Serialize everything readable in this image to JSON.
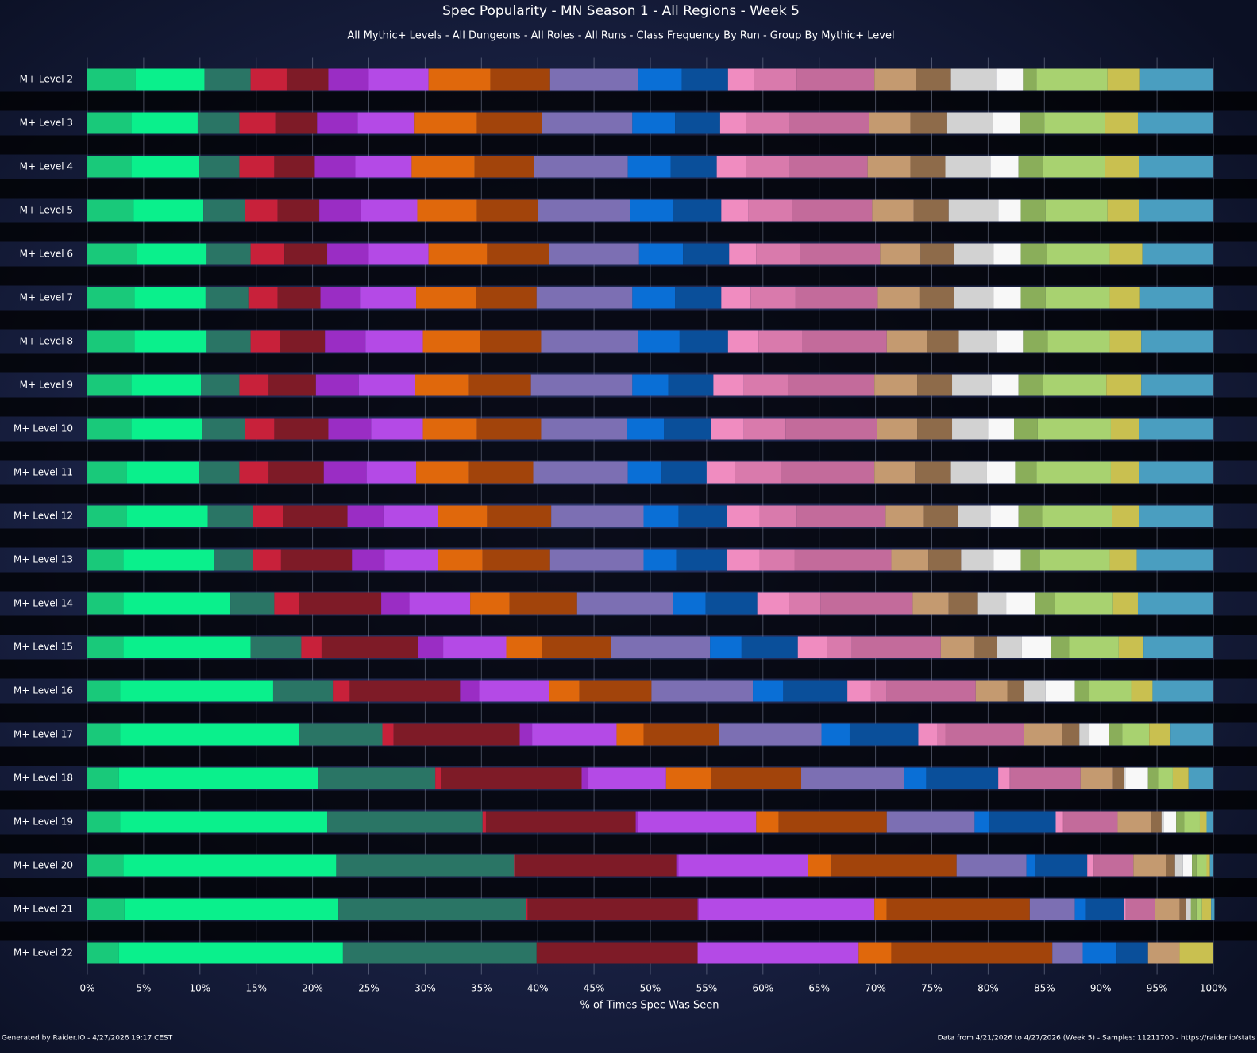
{
  "chart_data": {
    "type": "stacked-bar-horizontal",
    "title": "Spec Popularity - MN Season 1 - All Regions - Week 5",
    "subtitle": "All Mythic+ Levels - All Dungeons - All Roles - All Runs - Class Frequency By Run - Group By Mythic+ Level",
    "x_label": "% of Times Spec Was Seen",
    "footer_left": "Generated by Raider.IO - 4/27/2026 19:17 CEST",
    "footer_right": "Data from 4/21/2026 to 4/27/2026 (Week 5) - Samples: 11211700 - https://raider.io/stats",
    "grid": true,
    "xlim": [
      0,
      100
    ],
    "xticks": [
      {
        "value": 0,
        "label": "0%"
      },
      {
        "value": 5,
        "label": "5%"
      },
      {
        "value": 10,
        "label": "10%"
      },
      {
        "value": 15,
        "label": "15%"
      },
      {
        "value": 20,
        "label": "20%"
      },
      {
        "value": 25,
        "label": "25%"
      },
      {
        "value": 30,
        "label": "30%"
      },
      {
        "value": 35,
        "label": "35%"
      },
      {
        "value": 40,
        "label": "40%"
      },
      {
        "value": 45,
        "label": "45%"
      },
      {
        "value": 50,
        "label": "50%"
      },
      {
        "value": 55,
        "label": "55%"
      },
      {
        "value": 60,
        "label": "60%"
      },
      {
        "value": 65,
        "label": "65%"
      },
      {
        "value": 70,
        "label": "70%"
      },
      {
        "value": 75,
        "label": "75%"
      },
      {
        "value": 80,
        "label": "80%"
      },
      {
        "value": 85,
        "label": "85%"
      },
      {
        "value": 90,
        "label": "90%"
      },
      {
        "value": 95,
        "label": "95%"
      },
      {
        "value": 100,
        "label": "100%"
      }
    ],
    "categories": [
      "M+ Level 2",
      "M+ Level 3",
      "M+ Level 4",
      "M+ Level 5",
      "M+ Level 6",
      "M+ Level 7",
      "M+ Level 8",
      "M+ Level 9",
      "M+ Level 10",
      "M+ Level 11",
      "M+ Level 12",
      "M+ Level 13",
      "M+ Level 14",
      "M+ Level 15",
      "M+ Level 16",
      "M+ Level 17",
      "M+ Level 18",
      "M+ Level 19",
      "M+ Level 20",
      "M+ Level 21",
      "M+ Level 22"
    ],
    "series": [
      {
        "color": "#19c97a",
        "values": [
          4.3,
          3.9,
          3.9,
          4.1,
          4.4,
          4.2,
          4.2,
          3.9,
          3.9,
          3.5,
          3.5,
          3.2,
          3.2,
          3.2,
          2.9,
          2.9,
          2.8,
          2.9,
          3.2,
          3.3,
          2.8
        ]
      },
      {
        "color": "#0af08c",
        "values": [
          6.1,
          5.9,
          6.0,
          6.2,
          6.2,
          6.3,
          6.4,
          6.2,
          6.3,
          6.4,
          7.2,
          8.1,
          9.5,
          11.3,
          13.6,
          15.9,
          17.7,
          18.4,
          18.9,
          19.0,
          19.9
        ]
      },
      {
        "color": "#2a7565",
        "values": [
          4.1,
          3.7,
          3.6,
          3.7,
          3.9,
          3.8,
          3.9,
          3.4,
          3.8,
          3.6,
          4.0,
          3.4,
          3.9,
          4.5,
          5.3,
          7.4,
          10.4,
          13.8,
          15.8,
          16.7,
          17.2
        ]
      },
      {
        "color": "#c8213a",
        "values": [
          3.2,
          3.2,
          3.1,
          2.9,
          3.0,
          2.6,
          2.6,
          2.6,
          2.6,
          2.6,
          2.7,
          2.5,
          2.2,
          1.8,
          1.5,
          1.0,
          0.5,
          0.3,
          0.1,
          0.1,
          0
        ]
      },
      {
        "color": "#7e1b27",
        "values": [
          3.7,
          3.7,
          3.6,
          3.7,
          3.8,
          3.8,
          4.0,
          4.2,
          4.8,
          4.9,
          5.7,
          6.3,
          7.3,
          8.6,
          9.8,
          11.2,
          12.5,
          13.3,
          14.3,
          15.1,
          14.3
        ]
      },
      {
        "color": "#9a2dc4",
        "values": [
          3.6,
          3.6,
          3.6,
          3.7,
          3.7,
          3.5,
          3.6,
          3.8,
          3.8,
          3.8,
          3.2,
          2.9,
          2.5,
          2.2,
          1.7,
          1.1,
          0.6,
          0.2,
          0.2,
          0.1,
          0
        ]
      },
      {
        "color": "#b44ae6",
        "values": [
          5.3,
          5.0,
          5.0,
          5.0,
          5.3,
          5.0,
          5.1,
          5.0,
          4.6,
          4.4,
          4.8,
          4.7,
          5.4,
          5.6,
          6.2,
          7.5,
          6.9,
          10.5,
          11.5,
          15.6,
          14.3
        ]
      },
      {
        "color": "#e0680c",
        "values": [
          5.5,
          5.6,
          5.6,
          5.3,
          5.2,
          5.3,
          5.1,
          4.8,
          4.8,
          4.7,
          4.4,
          4.0,
          3.5,
          3.2,
          2.7,
          2.4,
          4.0,
          2.0,
          2.1,
          1.1,
          2.9
        ]
      },
      {
        "color": "#a2440b",
        "values": [
          5.3,
          5.8,
          5.3,
          5.4,
          5.5,
          5.4,
          5.4,
          5.5,
          5.7,
          5.7,
          5.7,
          6.0,
          6.0,
          6.1,
          6.4,
          6.7,
          8.0,
          9.6,
          11.1,
          12.7,
          14.3
        ]
      },
      {
        "color": "#7c6fb3",
        "values": [
          7.8,
          8.0,
          8.3,
          8.2,
          8.0,
          8.5,
          8.6,
          9.0,
          7.6,
          8.4,
          8.2,
          8.3,
          8.5,
          8.8,
          9.0,
          9.1,
          9.1,
          7.8,
          6.2,
          4.0,
          2.7
        ]
      },
      {
        "color": "#0a6fd6",
        "values": [
          3.9,
          3.8,
          3.8,
          3.8,
          3.9,
          3.8,
          3.7,
          3.2,
          3.3,
          3.0,
          3.1,
          2.9,
          2.9,
          2.8,
          2.7,
          2.5,
          2.0,
          1.3,
          0.8,
          1.0,
          3.0
        ]
      },
      {
        "color": "#0a4f9a",
        "values": [
          4.1,
          4.0,
          4.1,
          4.3,
          4.1,
          4.1,
          4.3,
          4.0,
          4.2,
          4.0,
          4.3,
          4.5,
          4.6,
          5.0,
          5.7,
          6.1,
          6.4,
          5.9,
          4.6,
          3.4,
          2.8
        ]
      },
      {
        "color": "#f08cc0",
        "values": [
          2.3,
          2.3,
          2.6,
          2.4,
          2.4,
          2.6,
          2.7,
          2.7,
          2.9,
          2.5,
          2.9,
          2.9,
          2.8,
          2.6,
          2.1,
          1.7,
          1.0,
          0.6,
          0.5,
          0.1,
          0
        ]
      },
      {
        "color": "#d97aac",
        "values": [
          3.8,
          3.9,
          3.9,
          3.9,
          3.9,
          4.0,
          3.9,
          3.9,
          3.7,
          4.1,
          3.3,
          3.1,
          2.8,
          2.2,
          1.4,
          0.7,
          0.1,
          0.1,
          0.1,
          0.1,
          0
        ]
      },
      {
        "color": "#c36b9b",
        "values": [
          6.9,
          7.0,
          6.9,
          7.1,
          7.1,
          7.3,
          7.5,
          7.7,
          8.1,
          8.3,
          7.9,
          8.6,
          8.2,
          7.9,
          7.9,
          7.0,
          6.2,
          4.8,
          3.5,
          2.5,
          0
        ]
      },
      {
        "color": "#c49a70",
        "values": [
          3.7,
          3.7,
          3.8,
          3.7,
          3.6,
          3.7,
          3.6,
          3.8,
          3.6,
          3.6,
          3.4,
          3.3,
          3.2,
          3.0,
          2.8,
          3.4,
          2.9,
          3.0,
          2.9,
          2.2,
          2.8
        ]
      },
      {
        "color": "#8e6b4a",
        "values": [
          3.1,
          3.2,
          3.1,
          3.1,
          3.0,
          3.1,
          2.8,
          3.1,
          3.1,
          3.2,
          3.0,
          2.9,
          2.6,
          2.0,
          1.5,
          1.5,
          1.0,
          0.9,
          0.8,
          0.6,
          0
        ]
      },
      {
        "color": "#d2d2d2",
        "values": [
          4.0,
          4.1,
          4.0,
          4.4,
          3.5,
          3.5,
          3.4,
          3.5,
          3.2,
          3.2,
          2.9,
          2.9,
          2.5,
          2.2,
          1.9,
          0.9,
          0.1,
          0.2,
          0.7,
          0.3,
          0
        ]
      },
      {
        "color": "#f8f8f8",
        "values": [
          2.4,
          2.4,
          2.5,
          2.0,
          2.4,
          2.4,
          2.3,
          2.4,
          2.3,
          2.5,
          2.5,
          2.4,
          2.6,
          2.6,
          2.6,
          1.7,
          2.0,
          1.1,
          0.8,
          0.1,
          0
        ]
      },
      {
        "color": "#8aae5a",
        "values": [
          1.2,
          2.2,
          2.2,
          2.2,
          2.3,
          2.2,
          2.2,
          2.2,
          2.1,
          1.9,
          2.1,
          1.7,
          1.7,
          1.6,
          1.3,
          1.2,
          0.9,
          0.7,
          0.4,
          0.5,
          0
        ]
      },
      {
        "color": "#a8d270",
        "values": [
          6.3,
          5.4,
          5.5,
          5.5,
          5.6,
          5.7,
          5.5,
          5.6,
          6.5,
          6.6,
          6.2,
          6.2,
          5.2,
          4.4,
          3.7,
          2.4,
          1.3,
          1.4,
          0.9,
          0.5,
          0
        ]
      },
      {
        "color": "#c9c050",
        "values": [
          2.9,
          2.9,
          3.0,
          2.8,
          2.9,
          2.7,
          2.8,
          3.1,
          2.5,
          2.5,
          2.4,
          2.4,
          2.2,
          2.2,
          1.9,
          1.9,
          1.4,
          0.6,
          0.3,
          0.8,
          3.0
        ]
      },
      {
        "color": "#4a9ec0",
        "values": [
          6.5,
          6.7,
          6.6,
          6.6,
          6.3,
          6.5,
          6.4,
          6.4,
          6.6,
          6.6,
          6.6,
          6.8,
          6.7,
          6.2,
          5.4,
          3.8,
          2.2,
          0.6,
          0.3,
          0.3,
          0
        ]
      }
    ]
  }
}
